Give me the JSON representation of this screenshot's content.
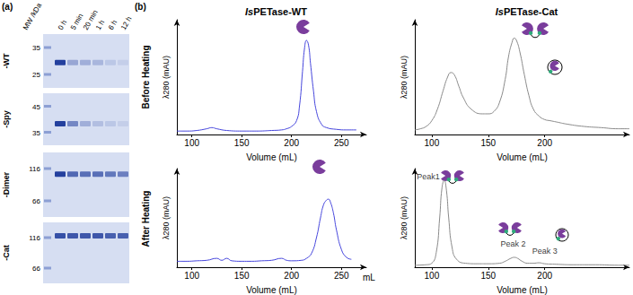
{
  "panel_a": {
    "label": "(a)",
    "mw_label": "MW /kDa",
    "lanes": [
      "0 h",
      "5 min",
      "20 min",
      "1 h",
      "6 h",
      "12 h"
    ],
    "gels": [
      {
        "name": "-WT",
        "markers": [
          35,
          25
        ],
        "band_kda": 29,
        "band_intensity": [
          1,
          0.35,
          0.3,
          0.25,
          0.15,
          0.1
        ]
      },
      {
        "name": "-Spy",
        "markers": [
          45,
          35
        ],
        "band_kda": 38,
        "band_intensity": [
          1,
          0.55,
          0.3,
          0.2,
          0.15,
          0.1
        ]
      },
      {
        "name": "-Dimer",
        "markers": [
          116,
          66
        ],
        "band_kda": 105,
        "band_intensity": [
          1,
          0.75,
          0.7,
          0.7,
          0.65,
          0.6
        ]
      },
      {
        "name": "-Cat",
        "markers": [
          116,
          66
        ],
        "band_kda": 120,
        "band_intensity": [
          0.9,
          0.85,
          0.85,
          0.85,
          0.8,
          0.8
        ]
      }
    ]
  },
  "panel_b_label": "(b)",
  "chart_data": [
    {
      "type": "line",
      "title": "IsPETase-WT",
      "row_label": "Before Heating",
      "x_label": "Volume (mL)",
      "y_label": "λ280 (mAU)",
      "color": "#4646dc",
      "x": [
        85,
        95,
        105,
        115,
        120,
        125,
        135,
        150,
        165,
        180,
        190,
        195,
        200,
        205,
        208,
        211,
        213,
        215,
        217,
        219,
        222,
        225,
        230,
        235,
        245,
        255,
        265
      ],
      "values": [
        3,
        3,
        3.5,
        5,
        6,
        5,
        3.5,
        3,
        3,
        3.5,
        4,
        5,
        7,
        12,
        25,
        55,
        75,
        82,
        78,
        62,
        38,
        20,
        9,
        6,
        4.5,
        4,
        4
      ],
      "xlim": [
        85,
        275
      ],
      "xticks": [
        100,
        150,
        200,
        250
      ],
      "ylim": [
        0,
        100
      ],
      "tick_labels": "x",
      "grid": false
    },
    {
      "type": "line",
      "row_label": "After Heating",
      "x_label": "Volume (mL)",
      "x_end_label": "mL",
      "y_label": "λ280 (mAU)",
      "color": "#4646dc",
      "x": [
        85,
        95,
        105,
        115,
        125,
        130,
        135,
        140,
        150,
        160,
        170,
        180,
        190,
        195,
        200,
        210,
        215,
        220,
        225,
        229,
        232,
        235,
        237,
        239,
        242,
        245,
        250,
        255,
        260
      ],
      "values": [
        6,
        6,
        6.5,
        7,
        9,
        7,
        9,
        6.5,
        6,
        6,
        6.5,
        7,
        9,
        7,
        6.5,
        7,
        9,
        14,
        30,
        50,
        63,
        68,
        69,
        66,
        55,
        38,
        18,
        10,
        8
      ],
      "xlim": [
        85,
        275
      ],
      "xticks": [
        100,
        150,
        200,
        250
      ],
      "ylim": [
        0,
        100
      ],
      "tick_labels": "x",
      "grid": false
    },
    {
      "type": "line",
      "title": "IsPETase-Cat",
      "x_label": "Volume (mL)",
      "y_label": "λ280 (mAU)",
      "color": "#8a8a8a",
      "x": [
        85,
        90,
        95,
        100,
        105,
        110,
        114,
        117,
        120,
        124,
        128,
        135,
        145,
        150,
        155,
        160,
        165,
        168,
        171,
        173,
        175,
        178,
        182,
        186,
        190,
        195,
        200,
        205,
        210,
        220,
        235,
        250,
        265,
        275
      ],
      "values": [
        4,
        5,
        7,
        12,
        22,
        38,
        50,
        54,
        52,
        42,
        32,
        22,
        18,
        18,
        20,
        28,
        48,
        68,
        80,
        84,
        82,
        72,
        52,
        34,
        22,
        16,
        13,
        12,
        11,
        9,
        7,
        6,
        5,
        5
      ],
      "xlim": [
        85,
        275
      ],
      "xticks": [
        100,
        150,
        200
      ],
      "ylim": [
        0,
        100
      ],
      "tick_labels": "x",
      "grid": false
    },
    {
      "type": "line",
      "x_label": "Volume (mL)",
      "y_label": "λ280 (mAU)",
      "color": "#8a8a8a",
      "x": [
        85,
        95,
        100,
        104,
        107,
        109,
        111,
        113,
        115,
        118,
        122,
        130,
        140,
        150,
        160,
        165,
        170,
        173,
        176,
        180,
        185,
        190,
        195,
        200,
        210,
        225,
        245,
        265,
        275
      ],
      "values": [
        2,
        2.5,
        4,
        15,
        50,
        80,
        88,
        78,
        50,
        20,
        8,
        4,
        3.5,
        3.5,
        4,
        6,
        9,
        10,
        9,
        6,
        4,
        4,
        4.5,
        3.5,
        3,
        2.5,
        2.5,
        2,
        2
      ],
      "xlim": [
        85,
        275
      ],
      "xticks": [
        100,
        150,
        200
      ],
      "ylim": [
        0,
        100
      ],
      "tick_labels": "x",
      "grid": false,
      "annotations": [
        {
          "text": "Peak1",
          "x": 97,
          "y": 92
        },
        {
          "text": "Peak 2",
          "x": 172,
          "y": 24
        },
        {
          "text": "Peak 3",
          "x": 200,
          "y": 16
        }
      ]
    }
  ]
}
